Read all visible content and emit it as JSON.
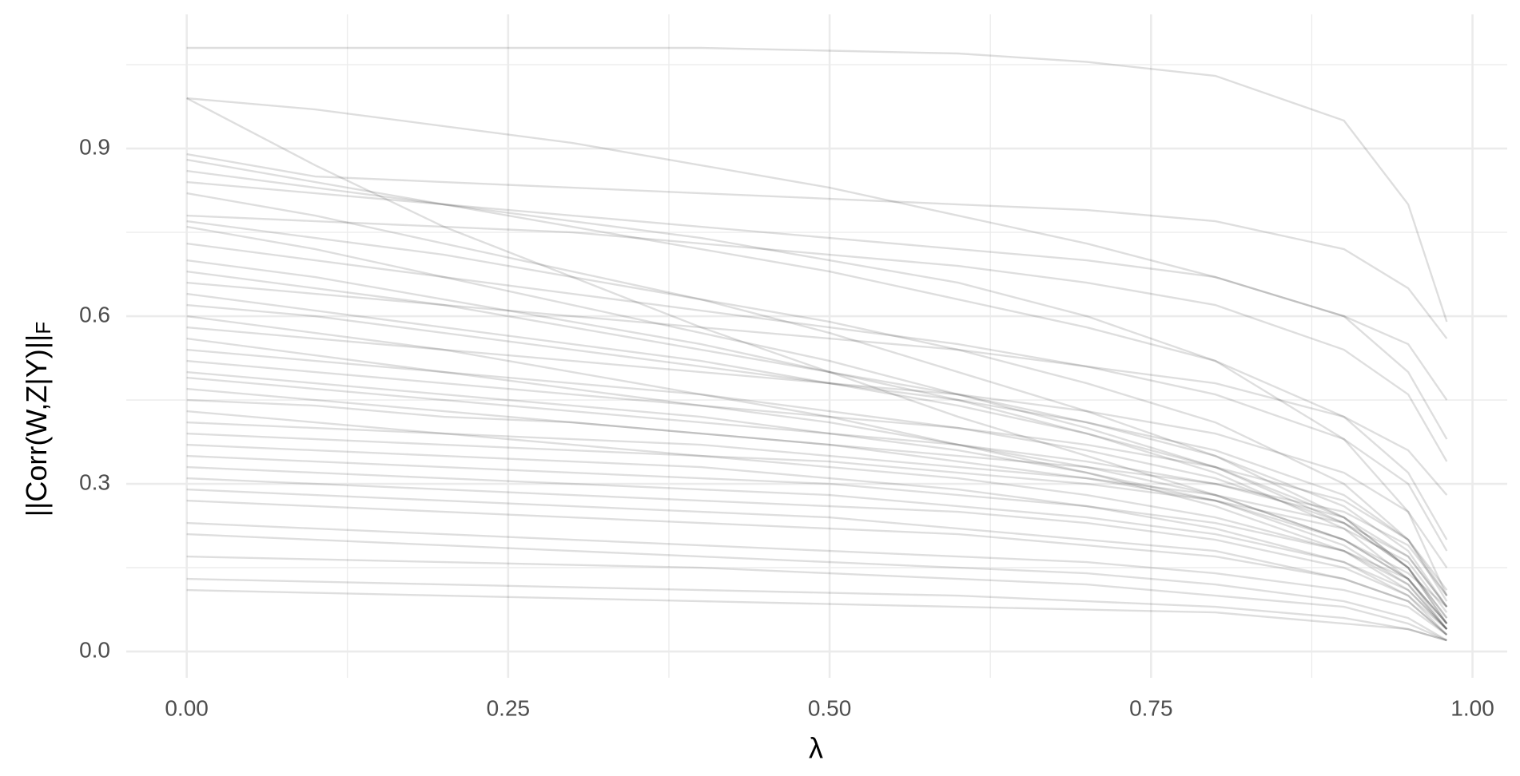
{
  "chart_data": {
    "type": "line",
    "xlabel": "λ",
    "ylabel": "||Corr(W,Z|Y)||",
    "ylabel_subscript": "F",
    "x": [
      0,
      0.1,
      0.2,
      0.3,
      0.4,
      0.5,
      0.6,
      0.7,
      0.8,
      0.9,
      0.95,
      0.98
    ],
    "color": "#000000",
    "opacity": 0.13,
    "grid": true,
    "xlim": [
      -0.047,
      1.027
    ],
    "ylim": [
      -0.047,
      1.14
    ],
    "xticks": [
      {
        "value": 0,
        "label": "0.00"
      },
      {
        "value": 0.25,
        "label": "0.25"
      },
      {
        "value": 0.5,
        "label": "0.50"
      },
      {
        "value": 0.75,
        "label": "0.75"
      },
      {
        "value": 1,
        "label": "1.00"
      }
    ],
    "yticks": [
      {
        "value": 0,
        "label": "0.0"
      },
      {
        "value": 0.3,
        "label": "0.3"
      },
      {
        "value": 0.6,
        "label": "0.6"
      },
      {
        "value": 0.9,
        "label": "0.9"
      }
    ],
    "xminor": [
      0.125,
      0.375,
      0.625,
      0.875
    ],
    "yminor": [
      0.15,
      0.45,
      0.75,
      1.05
    ],
    "series": [
      {
        "values": [
          1.08,
          1.08,
          1.08,
          1.08,
          1.08,
          1.075,
          1.07,
          1.055,
          1.03,
          0.95,
          0.8,
          0.59
        ]
      },
      {
        "values": [
          0.99,
          0.97,
          0.94,
          0.91,
          0.87,
          0.83,
          0.78,
          0.73,
          0.67,
          0.6,
          0.55,
          0.45
        ]
      },
      {
        "values": [
          0.99,
          0.87,
          0.76,
          0.67,
          0.58,
          0.5,
          0.42,
          0.35,
          0.28,
          0.2,
          0.14,
          0.08
        ]
      },
      {
        "values": [
          0.89,
          0.85,
          0.84,
          0.83,
          0.82,
          0.81,
          0.8,
          0.79,
          0.77,
          0.72,
          0.65,
          0.56
        ]
      },
      {
        "values": [
          0.88,
          0.84,
          0.8,
          0.76,
          0.72,
          0.68,
          0.63,
          0.58,
          0.52,
          0.42,
          0.32,
          0.2
        ]
      },
      {
        "values": [
          0.86,
          0.83,
          0.8,
          0.77,
          0.74,
          0.7,
          0.66,
          0.6,
          0.52,
          0.38,
          0.25,
          0.1
        ]
      },
      {
        "values": [
          0.84,
          0.82,
          0.8,
          0.78,
          0.76,
          0.74,
          0.72,
          0.7,
          0.67,
          0.6,
          0.5,
          0.38
        ]
      },
      {
        "values": [
          0.82,
          0.78,
          0.73,
          0.68,
          0.63,
          0.57,
          0.5,
          0.43,
          0.35,
          0.24,
          0.15,
          0.06
        ]
      },
      {
        "values": [
          0.78,
          0.77,
          0.76,
          0.75,
          0.73,
          0.71,
          0.69,
          0.66,
          0.62,
          0.54,
          0.46,
          0.34
        ]
      },
      {
        "values": [
          0.77,
          0.74,
          0.71,
          0.67,
          0.63,
          0.59,
          0.54,
          0.48,
          0.41,
          0.3,
          0.2,
          0.09
        ]
      },
      {
        "values": [
          0.76,
          0.72,
          0.67,
          0.62,
          0.57,
          0.52,
          0.46,
          0.4,
          0.33,
          0.23,
          0.15,
          0.05
        ]
      },
      {
        "values": [
          0.73,
          0.7,
          0.67,
          0.64,
          0.61,
          0.58,
          0.55,
          0.51,
          0.46,
          0.38,
          0.3,
          0.18
        ]
      },
      {
        "values": [
          0.7,
          0.67,
          0.63,
          0.59,
          0.55,
          0.5,
          0.45,
          0.39,
          0.32,
          0.22,
          0.13,
          0.04
        ]
      },
      {
        "values": [
          0.68,
          0.65,
          0.62,
          0.58,
          0.54,
          0.5,
          0.46,
          0.41,
          0.35,
          0.26,
          0.18,
          0.08
        ]
      },
      {
        "values": [
          0.66,
          0.64,
          0.62,
          0.6,
          0.58,
          0.56,
          0.54,
          0.51,
          0.48,
          0.42,
          0.36,
          0.28
        ]
      },
      {
        "values": [
          0.64,
          0.61,
          0.58,
          0.55,
          0.52,
          0.48,
          0.44,
          0.39,
          0.33,
          0.24,
          0.15,
          0.05
        ]
      },
      {
        "values": [
          0.62,
          0.6,
          0.57,
          0.54,
          0.51,
          0.48,
          0.45,
          0.41,
          0.36,
          0.28,
          0.2,
          0.1
        ]
      },
      {
        "values": [
          0.6,
          0.57,
          0.54,
          0.5,
          0.46,
          0.42,
          0.37,
          0.32,
          0.26,
          0.18,
          0.11,
          0.04
        ]
      },
      {
        "values": [
          0.58,
          0.56,
          0.54,
          0.52,
          0.5,
          0.48,
          0.46,
          0.43,
          0.39,
          0.32,
          0.25,
          0.15
        ]
      },
      {
        "values": [
          0.56,
          0.53,
          0.5,
          0.47,
          0.44,
          0.41,
          0.37,
          0.33,
          0.28,
          0.2,
          0.13,
          0.05
        ]
      },
      {
        "values": [
          0.54,
          0.52,
          0.5,
          0.48,
          0.46,
          0.43,
          0.4,
          0.36,
          0.31,
          0.23,
          0.15,
          0.06
        ]
      },
      {
        "values": [
          0.52,
          0.5,
          0.48,
          0.46,
          0.44,
          0.42,
          0.4,
          0.37,
          0.33,
          0.27,
          0.2,
          0.11
        ]
      },
      {
        "values": [
          0.5,
          0.48,
          0.46,
          0.44,
          0.42,
          0.39,
          0.36,
          0.32,
          0.27,
          0.19,
          0.12,
          0.04
        ]
      },
      {
        "values": [
          0.49,
          0.47,
          0.45,
          0.43,
          0.41,
          0.39,
          0.37,
          0.34,
          0.3,
          0.24,
          0.17,
          0.08
        ]
      },
      {
        "values": [
          0.47,
          0.45,
          0.43,
          0.41,
          0.39,
          0.37,
          0.34,
          0.31,
          0.27,
          0.2,
          0.13,
          0.05
        ]
      },
      {
        "values": [
          0.45,
          0.44,
          0.42,
          0.41,
          0.39,
          0.37,
          0.35,
          0.33,
          0.3,
          0.25,
          0.19,
          0.1
        ]
      },
      {
        "values": [
          0.43,
          0.41,
          0.39,
          0.37,
          0.35,
          0.33,
          0.31,
          0.28,
          0.24,
          0.18,
          0.12,
          0.04
        ]
      },
      {
        "values": [
          0.41,
          0.4,
          0.39,
          0.38,
          0.37,
          0.35,
          0.33,
          0.31,
          0.28,
          0.23,
          0.17,
          0.08
        ]
      },
      {
        "values": [
          0.39,
          0.38,
          0.37,
          0.36,
          0.35,
          0.34,
          0.32,
          0.3,
          0.27,
          0.22,
          0.16,
          0.07
        ]
      },
      {
        "values": [
          0.37,
          0.36,
          0.35,
          0.34,
          0.33,
          0.31,
          0.29,
          0.26,
          0.22,
          0.16,
          0.1,
          0.03
        ]
      },
      {
        "values": [
          0.35,
          0.34,
          0.33,
          0.32,
          0.31,
          0.3,
          0.28,
          0.26,
          0.23,
          0.18,
          0.13,
          0.05
        ]
      },
      {
        "values": [
          0.33,
          0.32,
          0.31,
          0.3,
          0.29,
          0.28,
          0.26,
          0.24,
          0.21,
          0.16,
          0.11,
          0.04
        ]
      },
      {
        "values": [
          0.31,
          0.3,
          0.29,
          0.28,
          0.27,
          0.26,
          0.25,
          0.23,
          0.2,
          0.15,
          0.1,
          0.04
        ]
      },
      {
        "values": [
          0.29,
          0.28,
          0.27,
          0.26,
          0.25,
          0.24,
          0.22,
          0.2,
          0.18,
          0.13,
          0.09,
          0.03
        ]
      },
      {
        "values": [
          0.27,
          0.26,
          0.25,
          0.24,
          0.23,
          0.22,
          0.21,
          0.19,
          0.17,
          0.13,
          0.09,
          0.03
        ]
      },
      {
        "values": [
          0.23,
          0.22,
          0.21,
          0.2,
          0.19,
          0.18,
          0.17,
          0.16,
          0.14,
          0.11,
          0.08,
          0.03
        ]
      },
      {
        "values": [
          0.21,
          0.2,
          0.19,
          0.18,
          0.17,
          0.16,
          0.15,
          0.14,
          0.12,
          0.09,
          0.06,
          0.02
        ]
      },
      {
        "values": [
          0.17,
          0.165,
          0.16,
          0.155,
          0.15,
          0.14,
          0.13,
          0.12,
          0.1,
          0.08,
          0.05,
          0.02
        ]
      },
      {
        "values": [
          0.13,
          0.125,
          0.12,
          0.115,
          0.11,
          0.105,
          0.1,
          0.09,
          0.08,
          0.06,
          0.04,
          0.02
        ]
      },
      {
        "values": [
          0.11,
          0.105,
          0.1,
          0.095,
          0.09,
          0.085,
          0.08,
          0.075,
          0.07,
          0.05,
          0.04,
          0.02
        ]
      }
    ]
  }
}
